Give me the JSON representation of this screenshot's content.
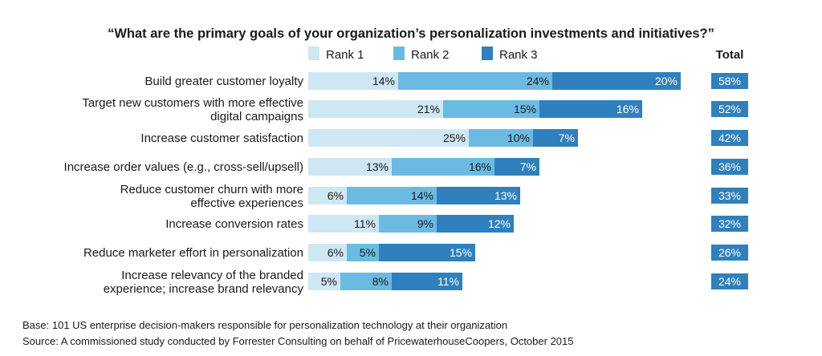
{
  "chart_data": {
    "type": "bar",
    "stacked": true,
    "orientation": "horizontal",
    "title": "“What are the primary goals of your organization’s personalization investments and initiatives?”",
    "categories": [
      [
        "Build greater customer loyalty"
      ],
      [
        "Target new customers with more effective",
        "digital campaigns"
      ],
      [
        "Increase customer satisfaction"
      ],
      [
        "Increase order values (e.g., cross-sell/upsell)"
      ],
      [
        "Reduce customer churn with more",
        "effective experiences"
      ],
      [
        "Increase conversion rates"
      ],
      [
        "Reduce marketer effort in personalization"
      ],
      [
        "Increase relevancy of the branded",
        "experience; increase brand relevancy"
      ]
    ],
    "series": [
      {
        "name": "Rank 1",
        "color": "#cfe7f2",
        "values": [
          14,
          21,
          25,
          13,
          6,
          11,
          6,
          5
        ]
      },
      {
        "name": "Rank 2",
        "color": "#6bbae2",
        "values": [
          24,
          15,
          10,
          16,
          14,
          9,
          5,
          8
        ]
      },
      {
        "name": "Rank 3",
        "color": "#2f80bc",
        "values": [
          20,
          16,
          7,
          7,
          13,
          12,
          15,
          11
        ]
      }
    ],
    "totals": [
      58,
      52,
      42,
      36,
      33,
      32,
      26,
      24
    ],
    "totals_header": "Total",
    "value_suffix": "%",
    "legend_position": "top",
    "grid": false
  },
  "footnotes": {
    "base": "Base: 101 US enterprise decision-makers responsible for personalization technology at their organization",
    "source": "Source: A commissioned study conducted by Forrester Consulting on behalf of PricewaterhouseCoopers, October 2015"
  }
}
